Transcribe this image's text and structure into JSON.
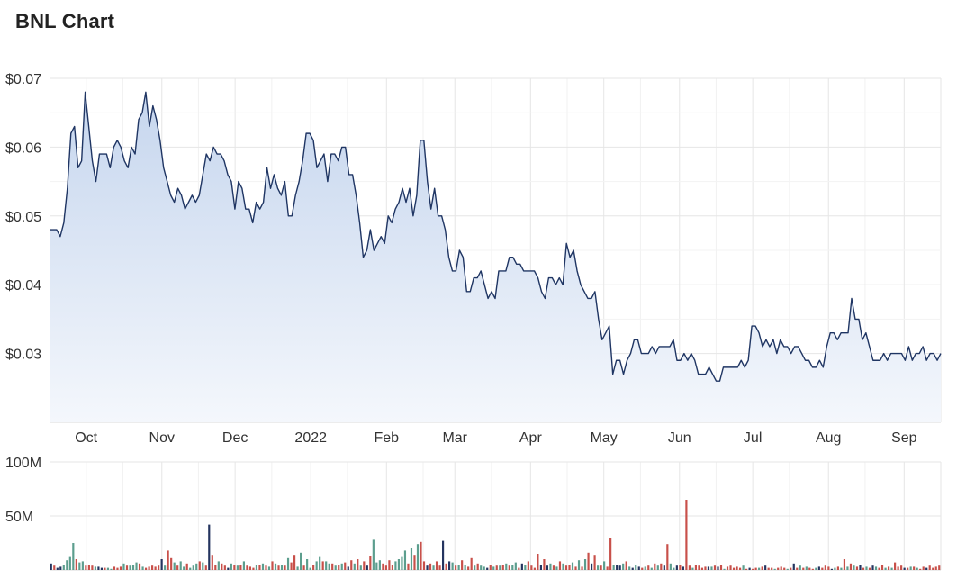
{
  "title": "BNL Chart",
  "colors": {
    "line": "#1f3563",
    "area_top": "#c6d6ee",
    "area_bottom": "#f4f7fc",
    "grid": "#e6e6e6",
    "volume_up": "#5c9e8e",
    "volume_down": "#c8504a",
    "volume_dark": "#24345f"
  },
  "chart_data": [
    {
      "type": "line",
      "title": "BNL Chart",
      "xlabel": "",
      "ylabel": "",
      "y_ticks": [
        "$0.03",
        "$0.04",
        "$0.05",
        "$0.06",
        "$0.07"
      ],
      "ylim": [
        0.02,
        0.07
      ],
      "x_ticks": [
        "Oct",
        "Nov",
        "Dec",
        "2022",
        "Feb",
        "Mar",
        "Apr",
        "May",
        "Jun",
        "Jul",
        "Aug",
        "Sep"
      ],
      "x_range": [
        "2021-09-16",
        "2022-09-16"
      ],
      "grid": true,
      "values": [
        0.048,
        0.048,
        0.048,
        0.047,
        0.049,
        0.054,
        0.062,
        0.063,
        0.057,
        0.058,
        0.068,
        0.063,
        0.058,
        0.055,
        0.059,
        0.059,
        0.059,
        0.057,
        0.06,
        0.061,
        0.06,
        0.058,
        0.057,
        0.06,
        0.059,
        0.064,
        0.065,
        0.068,
        0.063,
        0.066,
        0.064,
        0.061,
        0.057,
        0.055,
        0.053,
        0.052,
        0.054,
        0.053,
        0.051,
        0.052,
        0.053,
        0.052,
        0.053,
        0.056,
        0.059,
        0.058,
        0.06,
        0.059,
        0.059,
        0.058,
        0.056,
        0.055,
        0.051,
        0.055,
        0.054,
        0.051,
        0.051,
        0.049,
        0.052,
        0.051,
        0.052,
        0.057,
        0.054,
        0.056,
        0.054,
        0.053,
        0.055,
        0.05,
        0.05,
        0.053,
        0.055,
        0.058,
        0.062,
        0.062,
        0.061,
        0.057,
        0.058,
        0.059,
        0.055,
        0.059,
        0.059,
        0.058,
        0.06,
        0.06,
        0.056,
        0.056,
        0.053,
        0.049,
        0.044,
        0.045,
        0.048,
        0.045,
        0.046,
        0.047,
        0.046,
        0.05,
        0.049,
        0.051,
        0.052,
        0.054,
        0.052,
        0.054,
        0.05,
        0.053,
        0.061,
        0.061,
        0.055,
        0.051,
        0.054,
        0.05,
        0.05,
        0.048,
        0.044,
        0.042,
        0.042,
        0.045,
        0.044,
        0.039,
        0.039,
        0.041,
        0.041,
        0.042,
        0.04,
        0.038,
        0.039,
        0.038,
        0.042,
        0.042,
        0.042,
        0.044,
        0.044,
        0.043,
        0.043,
        0.042,
        0.042,
        0.042,
        0.042,
        0.041,
        0.039,
        0.038,
        0.041,
        0.041,
        0.04,
        0.041,
        0.04,
        0.046,
        0.044,
        0.045,
        0.042,
        0.04,
        0.039,
        0.038,
        0.038,
        0.039,
        0.035,
        0.032,
        0.033,
        0.034,
        0.027,
        0.029,
        0.029,
        0.027,
        0.029,
        0.03,
        0.032,
        0.032,
        0.03,
        0.03,
        0.03,
        0.031,
        0.03,
        0.031,
        0.031,
        0.031,
        0.031,
        0.032,
        0.029,
        0.029,
        0.03,
        0.029,
        0.03,
        0.029,
        0.027,
        0.027,
        0.027,
        0.028,
        0.027,
        0.026,
        0.026,
        0.028,
        0.028,
        0.028,
        0.028,
        0.028,
        0.029,
        0.028,
        0.029,
        0.034,
        0.034,
        0.033,
        0.031,
        0.032,
        0.031,
        0.032,
        0.03,
        0.032,
        0.031,
        0.031,
        0.03,
        0.031,
        0.031,
        0.03,
        0.029,
        0.029,
        0.028,
        0.028,
        0.029,
        0.028,
        0.031,
        0.033,
        0.033,
        0.032,
        0.033,
        0.033,
        0.033,
        0.038,
        0.035,
        0.035,
        0.032,
        0.033,
        0.031,
        0.029,
        0.029,
        0.029,
        0.03,
        0.029,
        0.03,
        0.03,
        0.03,
        0.03,
        0.029,
        0.031,
        0.029,
        0.03,
        0.03,
        0.031,
        0.029,
        0.03,
        0.03,
        0.029,
        0.03
      ]
    },
    {
      "type": "bar",
      "title": "",
      "xlabel": "",
      "ylabel": "",
      "y_ticks": [
        "50M",
        "100M"
      ],
      "ylim": [
        0,
        100
      ],
      "unit": "M",
      "x_range": [
        "2021-09-16",
        "2022-09-16"
      ],
      "grid": true,
      "values": [
        6,
        4,
        2,
        3,
        5,
        9,
        12,
        25,
        10,
        7,
        8,
        4,
        5,
        4,
        3,
        3,
        2,
        2,
        2,
        1,
        3,
        2,
        3,
        6,
        4,
        4,
        5,
        7,
        6,
        3,
        2,
        3,
        4,
        3,
        4,
        10,
        4,
        18,
        11,
        7,
        4,
        8,
        3,
        6,
        2,
        4,
        6,
        8,
        7,
        4,
        42,
        14,
        5,
        8,
        6,
        4,
        2,
        6,
        5,
        4,
        5,
        8,
        4,
        3,
        2,
        5,
        5,
        6,
        4,
        3,
        8,
        6,
        4,
        5,
        4,
        11,
        7,
        14,
        3,
        16,
        4,
        10,
        2,
        5,
        8,
        12,
        8,
        8,
        6,
        6,
        4,
        5,
        6,
        7,
        3,
        9,
        6,
        10,
        4,
        8,
        4,
        13,
        28,
        7,
        9,
        6,
        4,
        9,
        5,
        8,
        10,
        12,
        18,
        6,
        20,
        14,
        24,
        26,
        8,
        4,
        6,
        4,
        8,
        4,
        27,
        6,
        8,
        7,
        4,
        5,
        9,
        5,
        3,
        11,
        4,
        6,
        4,
        3,
        2,
        5,
        3,
        4,
        4,
        5,
        6,
        4,
        5,
        7,
        2,
        6,
        5,
        8,
        4,
        2,
        15,
        5,
        10,
        4,
        6,
        4,
        3,
        8,
        6,
        4,
        5,
        7,
        3,
        9,
        3,
        10,
        16,
        6,
        14,
        4,
        4,
        8,
        3,
        30,
        5,
        5,
        4,
        6,
        8,
        3,
        2,
        5,
        3,
        2,
        3,
        4,
        2,
        6,
        4,
        6,
        4,
        24,
        6,
        2,
        4,
        5,
        3,
        65,
        4,
        2,
        5,
        4,
        2,
        3,
        3,
        3,
        4,
        3,
        5,
        1,
        3,
        4,
        2,
        3,
        2,
        4,
        1,
        2,
        1,
        2,
        2,
        3,
        4,
        2,
        2,
        1,
        2,
        3,
        2,
        1,
        2,
        6,
        2,
        4,
        2,
        3,
        2,
        1,
        2,
        3,
        2,
        4,
        3,
        1,
        2,
        3,
        2,
        10,
        3,
        6,
        4,
        3,
        5,
        2,
        3,
        2,
        4,
        3,
        2,
        5,
        2,
        3,
        2,
        7,
        3,
        4,
        2,
        2,
        3,
        3,
        2,
        1,
        3,
        2,
        4,
        2,
        3,
        4
      ],
      "colors": [
        "#24345f",
        "#c8504a",
        "#24345f",
        "#24345f",
        "#5c9e8e",
        "#5c9e8e",
        "#5c9e8e",
        "#5c9e8e",
        "#c8504a",
        "#5c9e8e",
        "#5c9e8e",
        "#c8504a",
        "#c8504a",
        "#c8504a",
        "#5c9e8e",
        "#24345f",
        "#24345f",
        "#c8504a",
        "#5c9e8e",
        "#5c9e8e",
        "#c8504a",
        "#c8504a",
        "#c8504a",
        "#5c9e8e",
        "#c8504a",
        "#5c9e8e",
        "#5c9e8e",
        "#5c9e8e",
        "#c8504a",
        "#5c9e8e",
        "#c8504a",
        "#c8504a",
        "#c8504a",
        "#c8504a",
        "#c8504a",
        "#24345f",
        "#5c9e8e",
        "#c8504a",
        "#c8504a",
        "#5c9e8e",
        "#c8504a",
        "#5c9e8e",
        "#5c9e8e",
        "#c8504a",
        "#5c9e8e",
        "#5c9e8e",
        "#5c9e8e",
        "#c8504a",
        "#5c9e8e",
        "#c8504a",
        "#24345f",
        "#c8504a",
        "#c8504a",
        "#5c9e8e",
        "#c8504a",
        "#c8504a",
        "#24345f",
        "#5c9e8e",
        "#c8504a",
        "#5c9e8e",
        "#c8504a",
        "#5c9e8e",
        "#c8504a",
        "#c8504a",
        "#c8504a",
        "#5c9e8e",
        "#c8504a",
        "#5c9e8e",
        "#c8504a",
        "#5c9e8e",
        "#c8504a",
        "#5c9e8e",
        "#c8504a",
        "#5c9e8e",
        "#c8504a",
        "#5c9e8e",
        "#c8504a",
        "#c8504a",
        "#5c9e8e",
        "#5c9e8e",
        "#c8504a",
        "#5c9e8e",
        "#5c9e8e",
        "#c8504a",
        "#5c9e8e",
        "#5c9e8e",
        "#c8504a",
        "#5c9e8e",
        "#5c9e8e",
        "#c8504a",
        "#5c9e8e",
        "#c8504a",
        "#5c9e8e",
        "#c8504a",
        "#24345f",
        "#c8504a",
        "#5c9e8e",
        "#c8504a",
        "#5c9e8e",
        "#c8504a",
        "#24345f",
        "#c8504a",
        "#5c9e8e",
        "#5c9e8e",
        "#5c9e8e",
        "#c8504a",
        "#c8504a",
        "#c8504a",
        "#c8504a",
        "#5c9e8e",
        "#5c9e8e",
        "#5c9e8e",
        "#5c9e8e",
        "#c8504a",
        "#5c9e8e",
        "#c8504a",
        "#5c9e8e",
        "#c8504a",
        "#c8504a",
        "#24345f",
        "#c8504a",
        "#5c9e8e",
        "#c8504a",
        "#c8504a",
        "#24345f",
        "#c8504a",
        "#24345f",
        "#5c9e8e",
        "#c8504a",
        "#5c9e8e",
        "#c8504a",
        "#5c9e8e",
        "#c8504a",
        "#c8504a",
        "#5c9e8e",
        "#c8504a",
        "#5c9e8e",
        "#5c9e8e",
        "#24345f",
        "#c8504a",
        "#5c9e8e",
        "#c8504a",
        "#5c9e8e",
        "#c8504a",
        "#5c9e8e",
        "#c8504a",
        "#5c9e8e",
        "#5c9e8e",
        "#c8504a",
        "#24345f",
        "#5c9e8e",
        "#c8504a",
        "#c8504a",
        "#c8504a",
        "#c8504a",
        "#24345f",
        "#c8504a",
        "#24345f",
        "#5c9e8e",
        "#c8504a",
        "#5c9e8e",
        "#c8504a",
        "#5c9e8e",
        "#c8504a",
        "#c8504a",
        "#5c9e8e",
        "#c8504a",
        "#5c9e8e",
        "#c8504a",
        "#5c9e8e",
        "#c8504a",
        "#24345f",
        "#c8504a",
        "#5c9e8e",
        "#c8504a",
        "#5c9e8e",
        "#c8504a",
        "#c8504a",
        "#5c9e8e",
        "#24345f",
        "#24345f",
        "#5c9e8e",
        "#c8504a",
        "#5c9e8e",
        "#24345f",
        "#5c9e8e",
        "#24345f",
        "#c8504a",
        "#5c9e8e",
        "#c8504a",
        "#5c9e8e",
        "#c8504a",
        "#5c9e8e",
        "#c8504a",
        "#24345f",
        "#c8504a",
        "#5c9e8e",
        "#5c9e8e",
        "#24345f",
        "#c8504a",
        "#24345f",
        "#c8504a",
        "#c8504a",
        "#5c9e8e",
        "#c8504a",
        "#c8504a",
        "#c8504a",
        "#c8504a",
        "#24345f",
        "#5c9e8e",
        "#c8504a",
        "#24345f",
        "#c8504a",
        "#5c9e8e",
        "#c8504a",
        "#c8504a",
        "#c8504a",
        "#c8504a",
        "#c8504a",
        "#5c9e8e",
        "#c8504a",
        "#24345f",
        "#c8504a",
        "#c8504a",
        "#5c9e8e",
        "#c8504a",
        "#24345f",
        "#c8504a",
        "#c8504a",
        "#5c9e8e",
        "#c8504a",
        "#c8504a",
        "#c8504a",
        "#5c9e8e",
        "#c8504a",
        "#24345f",
        "#c8504a",
        "#5c9e8e",
        "#c8504a",
        "#5c9e8e",
        "#c8504a",
        "#c8504a",
        "#5c9e8e",
        "#24345f",
        "#c8504a",
        "#c8504a",
        "#c8504a",
        "#24345f",
        "#5c9e8e",
        "#c8504a",
        "#5c9e8e",
        "#c8504a",
        "#5c9e8e",
        "#c8504a",
        "#5c9e8e",
        "#c8504a",
        "#24345f",
        "#c8504a",
        "#5c9e8e",
        "#c8504a",
        "#24345f",
        "#5c9e8e",
        "#c8504a",
        "#c8504a",
        "#5c9e8e",
        "#c8504a",
        "#5c9e8e",
        "#c8504a",
        "#c8504a",
        "#c8504a",
        "#24345f",
        "#c8504a",
        "#5c9e8e",
        "#c8504a",
        "#5c9e8e",
        "#c8504a",
        "#c8504a",
        "#24345f",
        "#c8504a"
      ]
    }
  ]
}
